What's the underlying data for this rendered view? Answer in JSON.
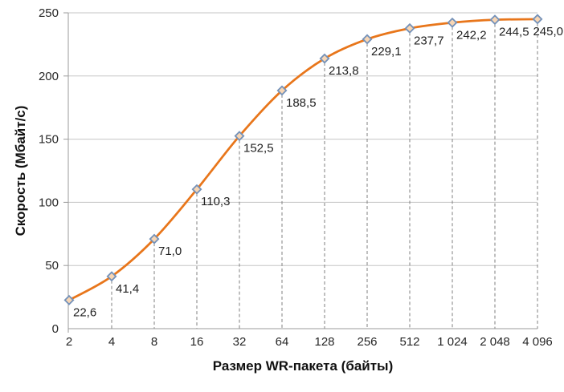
{
  "chart_data": {
    "type": "line",
    "title": "",
    "categories": [
      "2",
      "4",
      "8",
      "16",
      "32",
      "64",
      "128",
      "256",
      "512",
      "1 024",
      "2 048",
      "4 096"
    ],
    "series": [
      {
        "name": "Скорость",
        "values": [
          22.6,
          41.4,
          71.0,
          110.3,
          152.5,
          188.5,
          213.8,
          229.1,
          237.7,
          242.2,
          244.5,
          245.0
        ],
        "data_labels": [
          "22,6",
          "41,4",
          "71,0",
          "110,3",
          "152,5",
          "188,5",
          "213,8",
          "229,1",
          "237,7",
          "242,2",
          "244,5",
          "245,0"
        ]
      }
    ],
    "xlabel": "Размер WR-пакета (байты)",
    "ylabel": "Скорость (Мбайт/с)",
    "ylim": [
      0,
      250
    ],
    "ytick_step": 50,
    "yticks": [
      "0",
      "50",
      "100",
      "150",
      "200",
      "250"
    ],
    "x_axis_scale": "log2 categories",
    "grid": "horizontal solid gridlines every 50; dashed vertical drop lines from each point to x-axis",
    "legend": "none",
    "line_style": "smoothed",
    "marker": "diamond",
    "colors": {
      "line": "#E8761B",
      "marker_stroke": "#7391B9",
      "marker_fill": "#F8D6B4",
      "gridline": "#C6C6C6",
      "axis": "#9B9B9B",
      "dropline": "#7F7F7F",
      "text": "#262626"
    }
  }
}
